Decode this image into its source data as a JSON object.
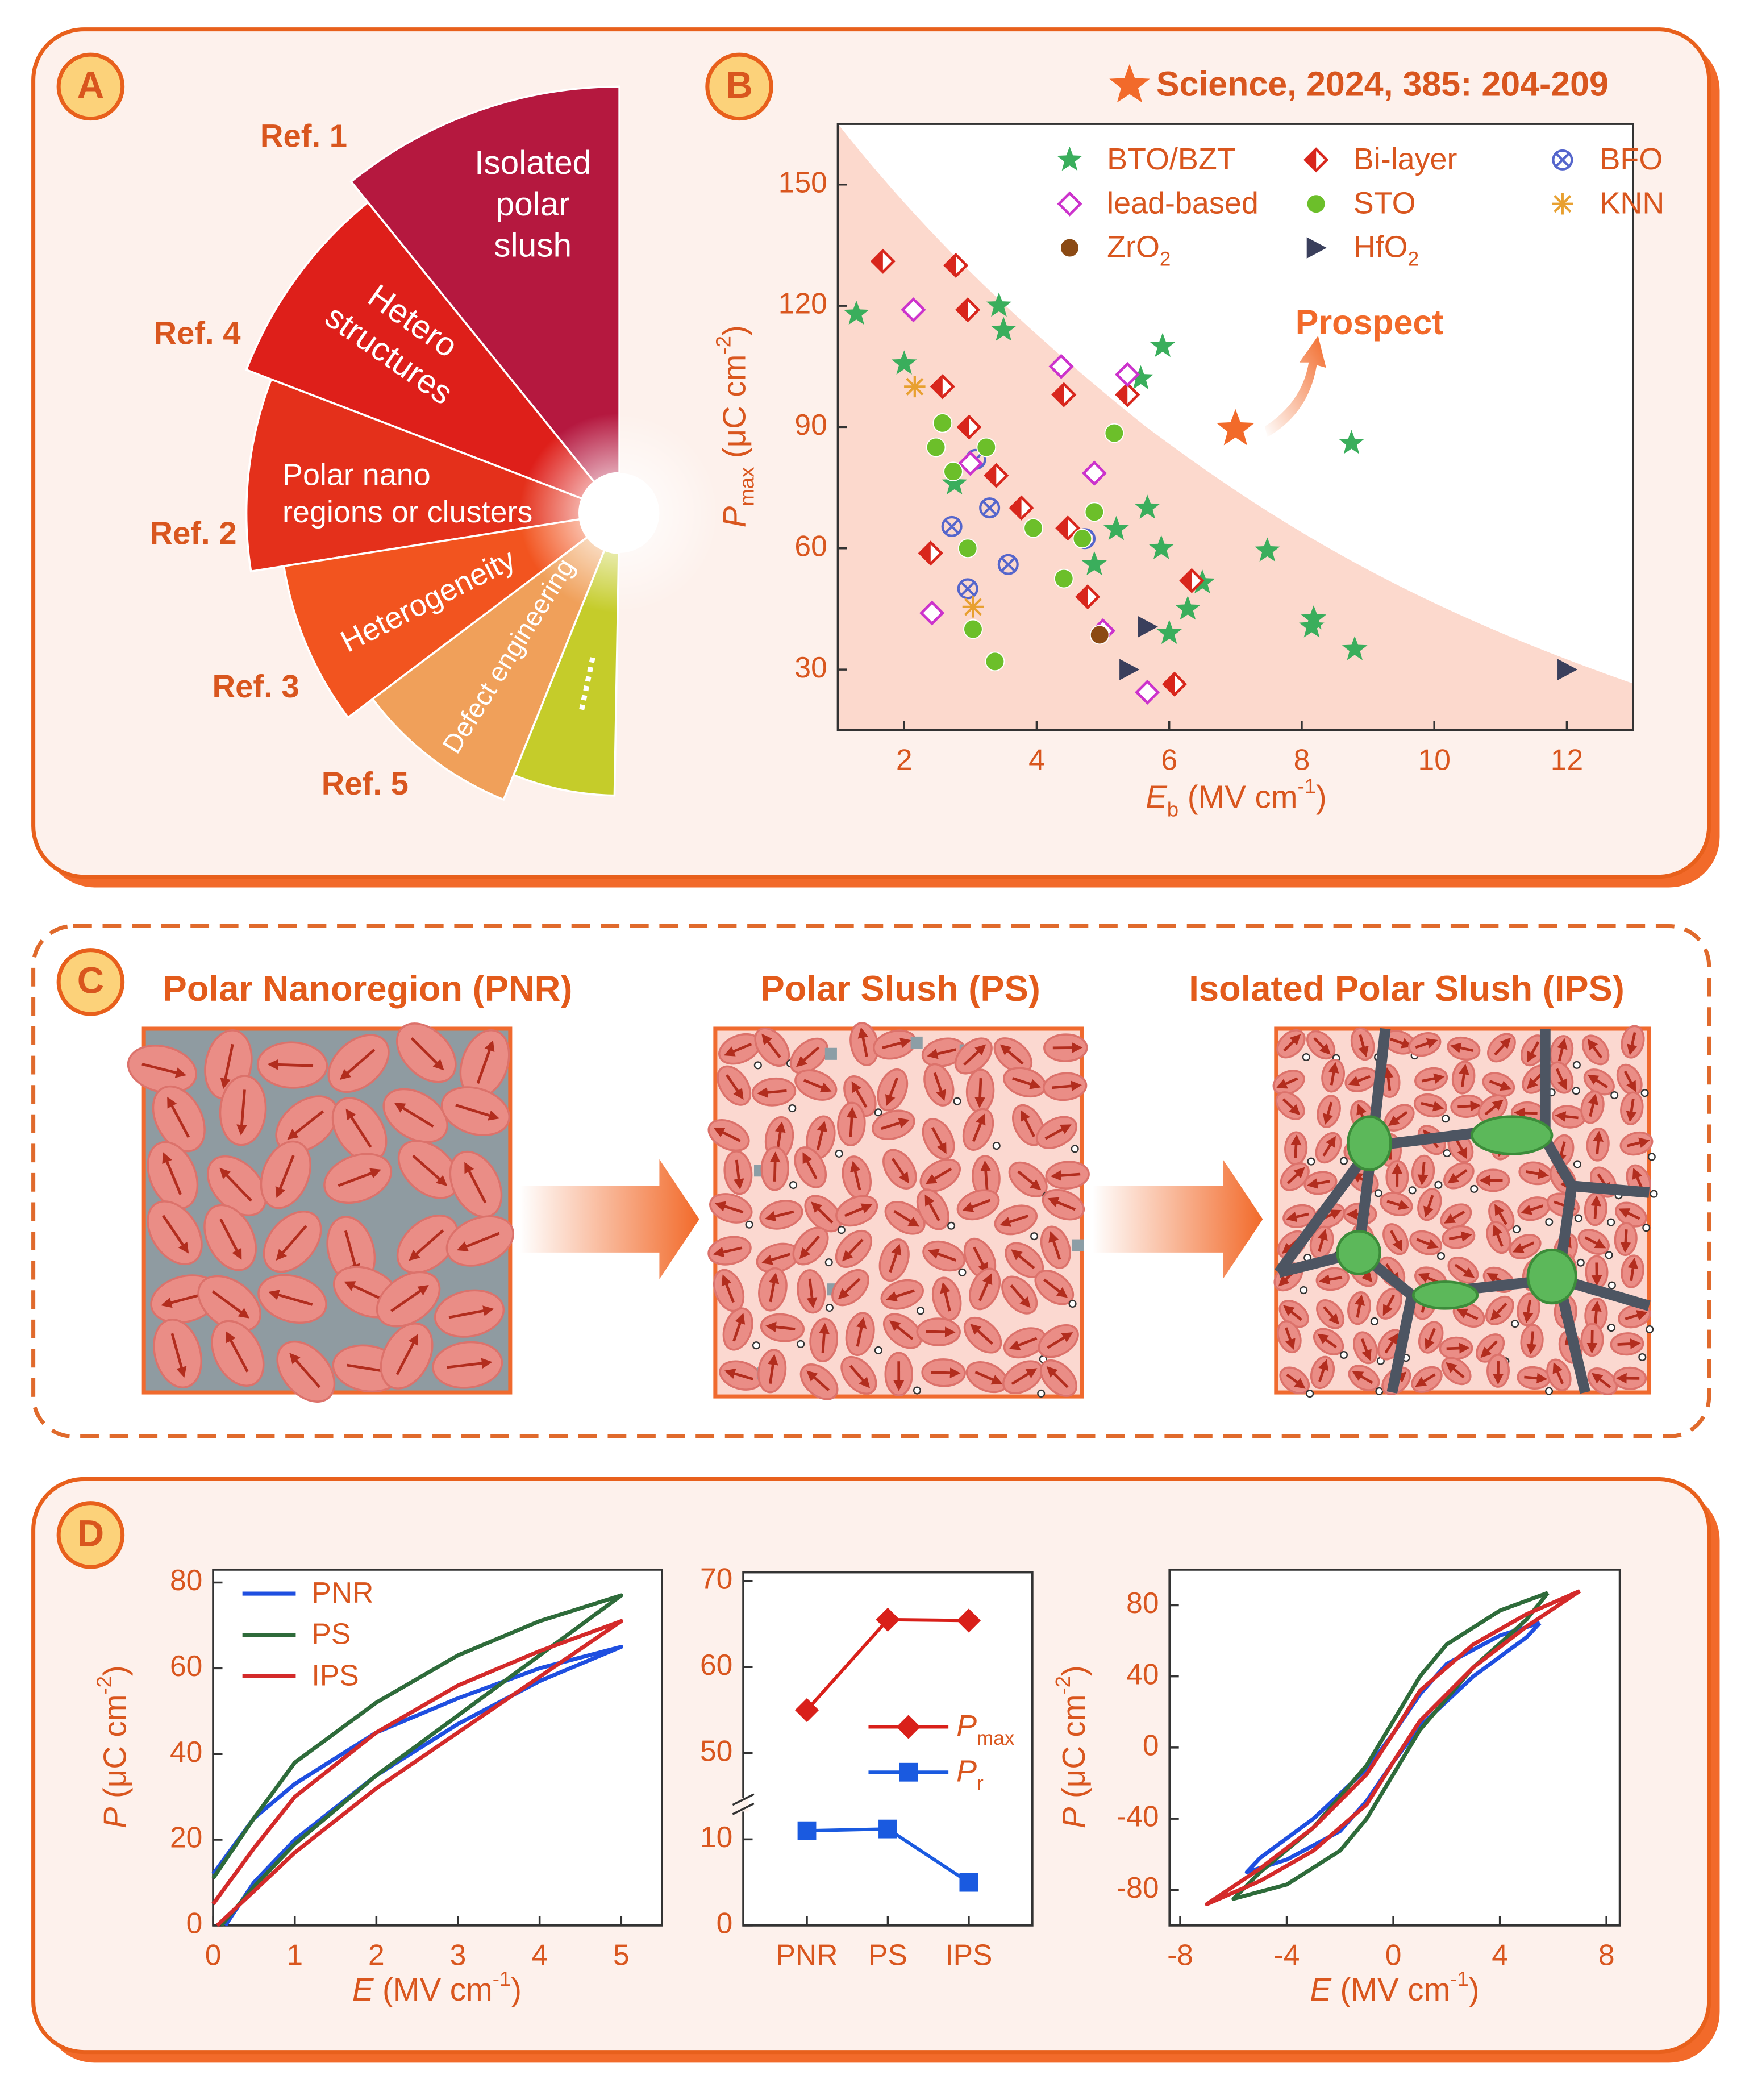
{
  "panel_labels": [
    "A",
    "B",
    "C",
    "D"
  ],
  "citation": "Science, 2024, 385: 204-209",
  "fan": [
    {
      "lines": [
        "Isolated",
        "polar",
        "slush"
      ],
      "ref": "Ref. 1"
    },
    {
      "lines": [
        "Hetero",
        "structures"
      ],
      "ref": "Ref. 4"
    },
    {
      "lines": [
        "Polar nano",
        "regions or clusters"
      ],
      "ref": "Ref. 2"
    },
    {
      "lines": [
        "Heterogeneity"
      ],
      "ref": "Ref. 3"
    },
    {
      "lines": [
        "Defect engineering"
      ],
      "ref": "Ref. 5"
    },
    {
      "lines": [
        "......"
      ]
    }
  ],
  "schematics": [
    {
      "title": "Polar Nanoregion (PNR)"
    },
    {
      "title": "Polar Slush (PS)"
    },
    {
      "title": "Isolated Polar Slush (IPS)"
    }
  ],
  "chart_data": [
    {
      "type": "scatter",
      "xlabel": [
        "E",
        "b",
        " (MV cm",
        "-1",
        ")"
      ],
      "ylabel": [
        "P",
        "max",
        " (μC cm",
        "-2",
        ")"
      ],
      "xlim": [
        1,
        13
      ],
      "xticks": [
        2,
        4,
        6,
        8,
        10,
        12
      ],
      "ylim": [
        15,
        165
      ],
      "yticks": [
        30,
        60,
        90,
        120,
        150
      ],
      "series": [
        {
          "name": "BTO/BZT",
          "color": "#3aae5c",
          "marker": "star",
          "x": [
            1.28,
            2.0,
            3.43,
            3.5,
            2.76,
            5.9,
            5.57,
            5.67,
            5.2,
            5.88,
            4.87,
            6.0,
            6.28,
            6.5,
            7.48,
            8.75,
            8.18,
            8.15,
            8.8
          ],
          "values": [
            118,
            105.7,
            120,
            114,
            76,
            110,
            102,
            70,
            64.7,
            60,
            56,
            39,
            45,
            51.5,
            59.4,
            86,
            42.6,
            40.6,
            35
          ]
        },
        {
          "name": "Bi-layer",
          "color": "#d8261c",
          "marker": "half-diamond",
          "x": [
            1.68,
            2.78,
            2.96,
            2.58,
            2.98,
            3.39,
            3.77,
            2.4,
            4.47,
            4.77,
            4.41,
            5.37,
            6.34,
            6.08
          ],
          "values": [
            131,
            130,
            119,
            100,
            90,
            78,
            70,
            58.8,
            65,
            48,
            98,
            98,
            52,
            26.4
          ]
        },
        {
          "name": "BFO",
          "color": "#5566cc",
          "marker": "circle-x",
          "x": [
            3.08,
            3.29,
            2.72,
            3.57,
            2.96,
            4.73
          ],
          "values": [
            82,
            70,
            65.4,
            56,
            50,
            62.4
          ]
        },
        {
          "name": "lead-based",
          "color": "#cc33cc",
          "marker": "open-diamond",
          "x": [
            2.14,
            4.37,
            5.37,
            4.87,
            2.42,
            5.67,
            5.0,
            3.0
          ],
          "values": [
            119,
            105,
            103,
            78.6,
            44,
            24.4,
            39.6,
            81
          ]
        },
        {
          "name": "STO",
          "color": "#6cbf2a",
          "marker": "sphere",
          "x": [
            2.58,
            2.48,
            2.74,
            3.24,
            2.96,
            3.95,
            3.04,
            3.37,
            5.17,
            4.87,
            4.41,
            4.69
          ],
          "values": [
            91,
            85,
            79,
            85,
            60,
            65,
            40,
            32,
            88.5,
            69,
            52.5,
            62.4
          ]
        },
        {
          "name": "KNN",
          "color": "#e8a030",
          "marker": "asterisk",
          "x": [
            2.16,
            3.04
          ],
          "values": [
            100,
            45.5
          ]
        },
        {
          "name": "ZrO2",
          "color": "#8b4a14",
          "marker": "sphere",
          "x": [
            4.95
          ],
          "values": [
            38.6
          ]
        },
        {
          "name": "HfO2",
          "color": "#3a3f5c",
          "marker": "triangle",
          "x": [
            5.67,
            5.39,
            12.0
          ],
          "values": [
            40.6,
            30,
            30
          ]
        }
      ],
      "highlight": {
        "x": 7.0,
        "value": 89.5,
        "color": "#f26a2a"
      },
      "annotation": "Prospect"
    },
    {
      "type": "line",
      "xlabel": [
        "E",
        " (MV cm",
        "-1",
        ")"
      ],
      "ylabel": [
        "P",
        " (μC cm",
        "-2",
        ")"
      ],
      "xlim": [
        0,
        5.5
      ],
      "xticks": [
        0,
        1,
        2,
        3,
        4,
        5
      ],
      "ylim": [
        0,
        83
      ],
      "yticks": [
        0,
        20,
        40,
        60,
        80
      ],
      "series": [
        {
          "name": "PNR",
          "color": "#1f4fe0",
          "x": [
            0.15,
            0.5,
            1,
            2,
            3,
            4,
            5,
            4,
            3,
            2,
            1,
            0.5,
            0
          ],
          "values": [
            0,
            10,
            20,
            35,
            47,
            57,
            65,
            60,
            53,
            45,
            33,
            25,
            12
          ]
        },
        {
          "name": "PS",
          "color": "#2e6b3a",
          "x": [
            0.1,
            0.5,
            1,
            2,
            3,
            4,
            5,
            4,
            3,
            2,
            1,
            0.5,
            0
          ],
          "values": [
            0,
            9,
            19,
            35,
            49,
            63,
            77,
            71,
            63,
            52,
            38,
            25,
            11
          ]
        },
        {
          "name": "IPS",
          "color": "#d42a2a",
          "x": [
            0.05,
            0.5,
            1,
            2,
            3,
            4,
            5,
            4,
            3,
            2,
            1,
            0.5,
            0
          ],
          "values": [
            0,
            8,
            17,
            32,
            45,
            58,
            71,
            64,
            56,
            45,
            30,
            18,
            5
          ]
        }
      ]
    },
    {
      "type": "line",
      "categories": [
        "PNR",
        "PS",
        "IPS"
      ],
      "ylim": [
        0,
        71
      ],
      "ybreak": [
        14,
        44
      ],
      "yticks": [
        0,
        10,
        50,
        60,
        70
      ],
      "series": [
        {
          "name": "Pmax",
          "color": "#d9201a",
          "marker": "diamond",
          "values": [
            55,
            65.5,
            65.4
          ]
        },
        {
          "name": "Pr",
          "color": "#1a5ae0",
          "marker": "square",
          "values": [
            11,
            11.2,
            5
          ]
        }
      ]
    },
    {
      "type": "line",
      "xlabel": [
        "E",
        " (MV cm",
        "-1",
        ")"
      ],
      "ylabel": [
        "P",
        " (μC cm",
        "-2",
        ")"
      ],
      "xlim": [
        -8.4,
        8.5
      ],
      "xticks": [
        -8,
        -4,
        0,
        4,
        8
      ],
      "ylim": [
        -100,
        100
      ],
      "yticks": [
        -80,
        -40,
        0,
        40,
        80
      ],
      "series": [
        {
          "name": "PNR",
          "color": "#1f4fe0",
          "x": [
            5.5,
            4,
            2,
            1,
            0,
            -1,
            -3,
            -5,
            -5.5,
            -4,
            -2,
            -1,
            0,
            1,
            3,
            5,
            5.5
          ],
          "values": [
            70,
            63,
            47,
            30,
            8,
            -12,
            -40,
            -62,
            -70,
            -63,
            -47,
            -30,
            -8,
            12,
            40,
            62,
            70
          ]
        },
        {
          "name": "PS",
          "color": "#2e6b3a",
          "x": [
            5.8,
            4,
            2,
            1,
            0,
            -1,
            -3,
            -5,
            -6,
            -4,
            -2,
            -1,
            0,
            1,
            3,
            5,
            5.8
          ],
          "values": [
            87,
            77,
            58,
            40,
            15,
            -10,
            -45,
            -70,
            -85,
            -77,
            -58,
            -40,
            -15,
            10,
            45,
            72,
            87
          ]
        },
        {
          "name": "IPS",
          "color": "#d42a2a",
          "x": [
            7,
            5,
            3,
            1,
            0,
            -1,
            -3,
            -5,
            -7,
            -5,
            -3,
            -1,
            0,
            1,
            3,
            5,
            7
          ],
          "values": [
            88,
            75,
            58,
            32,
            8,
            -15,
            -45,
            -68,
            -88,
            -75,
            -58,
            -32,
            -8,
            15,
            45,
            68,
            88
          ]
        }
      ]
    }
  ]
}
